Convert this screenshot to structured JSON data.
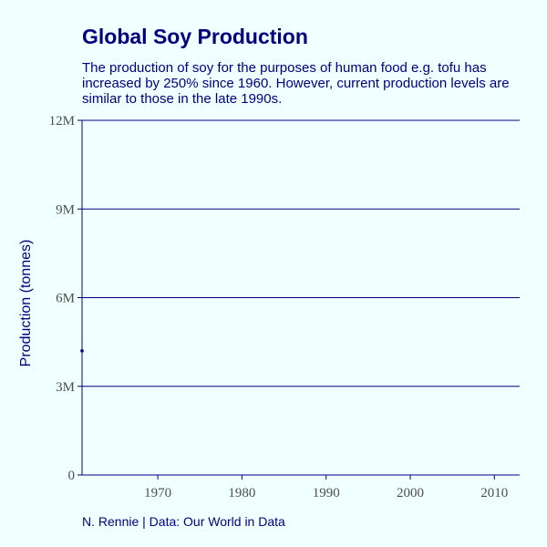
{
  "colors": {
    "background": "#f0ffff",
    "text": "#00007f",
    "axis": "#00007f",
    "gridline": "#00007f",
    "tick_label": "#4d4d4d",
    "series": "#00007f"
  },
  "chart_data": {
    "type": "line",
    "title": "Global Soy Production",
    "subtitle": "The production of soy for the purposes of human food e.g. tofu has increased by 250% since 1960. However, current production levels are similar to those in the late 1990s.",
    "caption": "N. Rennie | Data: Our World in Data",
    "xlabel": "",
    "ylabel": "Production (tonnes)",
    "xlim": [
      1961,
      2013
    ],
    "ylim": [
      0,
      12000000
    ],
    "x_ticks": [
      1970,
      1980,
      1990,
      2000,
      2010
    ],
    "y_ticks": [
      {
        "value": 0,
        "label": "0"
      },
      {
        "value": 3000000,
        "label": "3M"
      },
      {
        "value": 6000000,
        "label": "6M"
      },
      {
        "value": 9000000,
        "label": "9M"
      },
      {
        "value": 12000000,
        "label": "12M"
      }
    ],
    "grid": "horizontal",
    "legend": "none",
    "series": [
      {
        "x": [
          1961
        ],
        "values": [
          4200000
        ]
      }
    ]
  }
}
